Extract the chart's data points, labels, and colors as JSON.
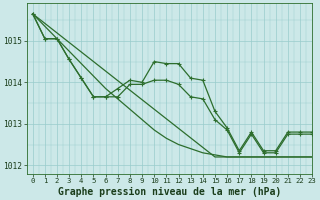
{
  "title": "Graphe pression niveau de la mer (hPa)",
  "background_color": "#cce8e8",
  "grid_color": "#99cccc",
  "line_color": "#2d6e2d",
  "text_color": "#1a3d1a",
  "xlim": [
    -0.5,
    23
  ],
  "ylim": [
    1011.8,
    1015.9
  ],
  "yticks": [
    1012,
    1013,
    1014,
    1015
  ],
  "xticks": [
    0,
    1,
    2,
    3,
    4,
    5,
    6,
    7,
    8,
    9,
    10,
    11,
    12,
    13,
    14,
    15,
    16,
    17,
    18,
    19,
    20,
    21,
    22,
    23
  ],
  "series_jagged1": [
    1015.65,
    1015.05,
    1015.05,
    1014.55,
    1014.1,
    1013.65,
    1013.65,
    1013.85,
    1014.05,
    1014.0,
    1014.5,
    1014.45,
    1014.45,
    1014.1,
    1014.05,
    1013.3,
    1012.9,
    1012.35,
    1012.8,
    1012.35,
    1012.35,
    1012.8,
    1012.8,
    1012.8
  ],
  "series_jagged2": [
    1015.65,
    1015.05,
    1015.05,
    1014.55,
    1014.1,
    1013.65,
    1013.65,
    1013.65,
    1013.95,
    1013.95,
    1014.05,
    1014.05,
    1013.95,
    1013.65,
    1013.6,
    1013.1,
    1012.85,
    1012.3,
    1012.75,
    1012.3,
    1012.3,
    1012.75,
    1012.75,
    1012.75
  ],
  "series_straight1": [
    1015.65,
    1015.35,
    1015.05,
    1014.75,
    1014.45,
    1014.15,
    1013.85,
    1013.6,
    1013.35,
    1013.1,
    1012.85,
    1012.65,
    1012.5,
    1012.4,
    1012.3,
    1012.25,
    1012.2,
    1012.2,
    1012.2,
    1012.2,
    1012.2,
    1012.2,
    1012.2,
    1012.2
  ],
  "series_straight2": [
    1015.65,
    1015.42,
    1015.19,
    1014.96,
    1014.73,
    1014.5,
    1014.27,
    1014.04,
    1013.81,
    1013.58,
    1013.35,
    1013.12,
    1012.89,
    1012.66,
    1012.43,
    1012.2,
    1012.2,
    1012.2,
    1012.2,
    1012.2,
    1012.2,
    1012.2,
    1012.2,
    1012.2
  ],
  "linewidth": 0.9,
  "marker_style": "+",
  "marker_size": 3.5,
  "title_fontsize": 7.0,
  "tick_fontsize": 5.2
}
